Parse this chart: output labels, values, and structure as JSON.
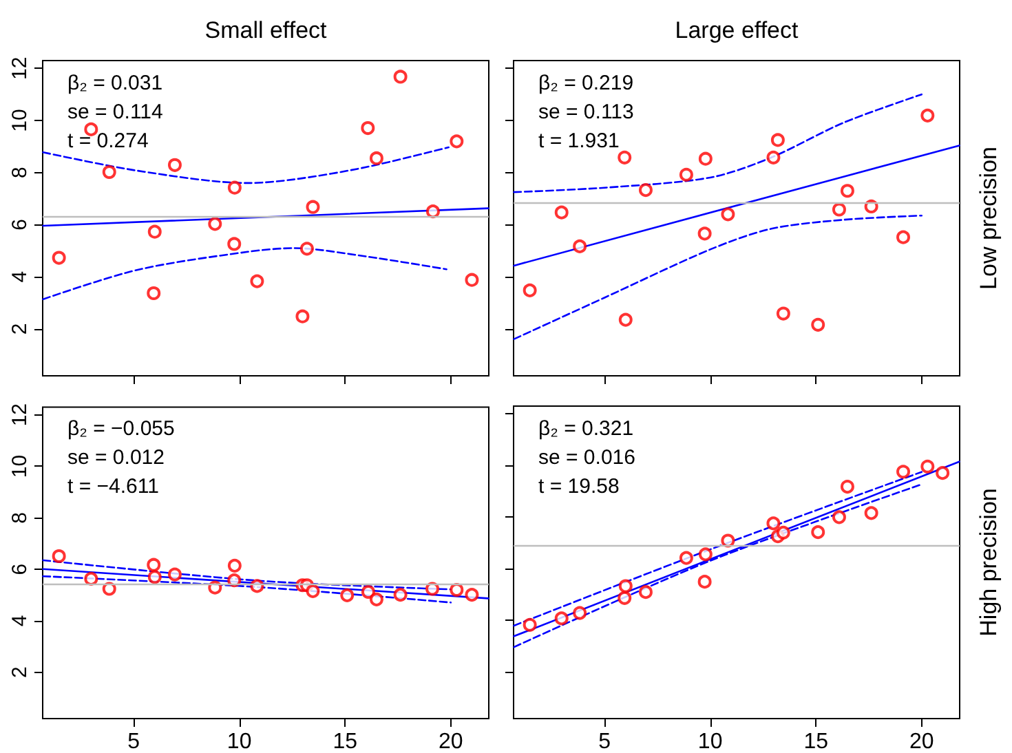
{
  "chart_data": [
    {
      "type": "scatter",
      "title": "Small effect",
      "annotations": [
        "β₂ = 0.031",
        "se = 0.114",
        "t = 0.274"
      ],
      "xlim": [
        0.7,
        21.8
      ],
      "ylim": [
        0.2,
        12.3
      ],
      "xticks": [
        5,
        10,
        15,
        20
      ],
      "yticks": [
        2,
        4,
        6,
        8,
        10,
        12
      ],
      "tick_labels": "y",
      "ref_lines": [
        {
          "axis": "y",
          "value": 6.31,
          "color": "#bebebe"
        }
      ],
      "series": [
        {
          "color": "#ff0000",
          "marker": "circle",
          "x": [
            1.47,
            2.99,
            3.85,
            5.95,
            6.0,
            6.95,
            8.85,
            9.76,
            9.78,
            10.84,
            12.99,
            13.2,
            13.48,
            16.08,
            16.49,
            17.62,
            19.16,
            20.28,
            21.0
          ],
          "values": [
            4.73,
            9.66,
            8.02,
            3.37,
            5.73,
            8.29,
            6.03,
            5.26,
            7.42,
            3.83,
            2.48,
            5.08,
            6.68,
            9.71,
            8.55,
            11.68,
            6.51,
            9.2,
            3.88
          ]
        },
        {
          "type": "line",
          "color": "#0000ff",
          "marker": "none",
          "x": [
            0.72,
            21.78
          ],
          "values": [
            5.96,
            6.63
          ]
        },
        {
          "type": "line",
          "color": "#0000ff",
          "marker": "none",
          "line_style": "dashed",
          "x": [
            0.72,
            5.2,
            10.4,
            12.6,
            16.0,
            19.9
          ],
          "values": [
            8.78,
            8.07,
            7.6,
            7.74,
            8.21,
            8.97
          ]
        },
        {
          "type": "line",
          "color": "#0000ff",
          "marker": "none",
          "line_style": "dashed",
          "x": [
            0.72,
            5.2,
            10.4,
            12.6,
            16.0,
            19.8
          ],
          "values": [
            3.14,
            4.27,
            4.96,
            5.1,
            4.78,
            4.29
          ]
        }
      ]
    },
    {
      "type": "scatter",
      "title": "Large effect",
      "y2label": "Low precision",
      "annotations": [
        "β₂ = 0.219",
        "se = 0.113",
        "t = 1.931"
      ],
      "xlim": [
        0.7,
        21.8
      ],
      "ylim": [
        0.2,
        12.3
      ],
      "xticks": [
        5,
        10,
        15,
        20
      ],
      "yticks": [
        2,
        4,
        6,
        8,
        10,
        12
      ],
      "tick_labels": false,
      "ref_lines": [
        {
          "axis": "y",
          "value": 6.82,
          "color": "#bebebe"
        }
      ],
      "series": [
        {
          "color": "#ff0000",
          "marker": "circle",
          "x": [
            1.47,
            2.97,
            3.83,
            5.95,
            6.0,
            6.95,
            8.87,
            9.78,
            9.74,
            10.84,
            12.99,
            13.2,
            13.46,
            15.1,
            16.1,
            16.49,
            17.62,
            19.13,
            20.28
          ],
          "values": [
            3.48,
            6.47,
            5.17,
            8.58,
            2.35,
            7.33,
            7.92,
            8.53,
            5.66,
            6.4,
            8.58,
            9.25,
            2.59,
            2.16,
            6.58,
            7.3,
            6.7,
            5.52,
            10.19
          ]
        },
        {
          "type": "line",
          "color": "#0000ff",
          "marker": "none",
          "x": [
            0.72,
            21.78
          ],
          "values": [
            4.43,
            9.04
          ]
        },
        {
          "type": "line",
          "color": "#0000ff",
          "marker": "none",
          "line_style": "dashed",
          "x": [
            0.72,
            5,
            10,
            12.86,
            16.32,
            20
          ],
          "values": [
            7.25,
            7.42,
            7.81,
            8.57,
            9.92,
            11.0
          ]
        },
        {
          "type": "line",
          "color": "#0000ff",
          "marker": "none",
          "line_style": "dashed",
          "x": [
            0.72,
            5,
            10,
            12.86,
            16.32,
            20
          ],
          "values": [
            1.61,
            3.2,
            5.05,
            5.84,
            6.19,
            6.35
          ]
        }
      ]
    },
    {
      "type": "scatter",
      "annotations": [
        "β₂ = −0.055",
        "se = 0.012",
        "t = −4.611"
      ],
      "xlim": [
        0.7,
        21.8
      ],
      "ylim": [
        0.2,
        12.3
      ],
      "xticks": [
        5,
        10,
        15,
        20
      ],
      "yticks": [
        2,
        4,
        6,
        8,
        10,
        12
      ],
      "ref_lines": [
        {
          "axis": "y",
          "value": 5.43,
          "color": "#bebebe"
        }
      ],
      "series": [
        {
          "color": "#ff0000",
          "marker": "circle",
          "x": [
            1.47,
            2.99,
            3.85,
            5.95,
            6.0,
            6.95,
            8.85,
            9.78,
            9.76,
            10.84,
            12.99,
            13.2,
            13.48,
            15.1,
            16.1,
            16.49,
            17.62,
            19.13,
            20.28,
            21.0
          ],
          "values": [
            6.51,
            5.63,
            5.24,
            6.17,
            5.7,
            5.8,
            5.29,
            6.14,
            5.57,
            5.35,
            5.38,
            5.38,
            5.15,
            4.99,
            5.12,
            4.83,
            5.01,
            5.24,
            5.2,
            5.01
          ]
        },
        {
          "type": "line",
          "color": "#0000ff",
          "marker": "none",
          "x": [
            0.72,
            21.78
          ],
          "values": [
            6.01,
            4.87
          ]
        },
        {
          "type": "line",
          "color": "#0000ff",
          "marker": "none",
          "line_style": "dashed",
          "x": [
            0.72,
            10.84,
            20.0
          ],
          "values": [
            6.35,
            5.56,
            5.22
          ]
        },
        {
          "type": "line",
          "color": "#0000ff",
          "marker": "none",
          "line_style": "dashed",
          "x": [
            0.72,
            10.84,
            20.0
          ],
          "values": [
            5.73,
            5.31,
            4.71
          ]
        }
      ]
    },
    {
      "type": "scatter",
      "y2label": "High precision",
      "annotations": [
        "β₂ = 0.321",
        "se = 0.016",
        "t = 19.58"
      ],
      "xlim": [
        0.7,
        21.8
      ],
      "ylim": [
        0.2,
        12.3
      ],
      "xticks": [
        5,
        10,
        15,
        20
      ],
      "yticks": [
        2,
        4,
        6,
        8,
        10,
        12
      ],
      "tick_labels": "x",
      "ref_lines": [
        {
          "axis": "y",
          "value": 6.89,
          "color": "#bebebe"
        }
      ],
      "series": [
        {
          "color": "#ff0000",
          "marker": "circle",
          "x": [
            1.47,
            2.97,
            3.83,
            5.95,
            6.0,
            6.95,
            8.87,
            9.78,
            9.74,
            10.84,
            12.99,
            13.2,
            13.46,
            15.1,
            16.1,
            16.49,
            17.62,
            19.13,
            20.28,
            20.99
          ],
          "values": [
            3.83,
            4.08,
            4.29,
            4.87,
            5.33,
            5.1,
            6.42,
            6.56,
            5.5,
            7.09,
            7.76,
            7.26,
            7.4,
            7.42,
            8.0,
            9.18,
            8.16,
            9.76,
            9.96,
            9.71
          ]
        },
        {
          "type": "line",
          "color": "#0000ff",
          "marker": "none",
          "x": [
            0.72,
            21.78
          ],
          "values": [
            3.39,
            10.15
          ]
        },
        {
          "type": "line",
          "color": "#0000ff",
          "marker": "none",
          "line_style": "dashed",
          "x": [
            0.72,
            10,
            20
          ],
          "values": [
            3.8,
            6.75,
            9.75
          ]
        },
        {
          "type": "line",
          "color": "#0000ff",
          "marker": "none",
          "line_style": "dashed",
          "x": [
            0.72,
            10,
            20
          ],
          "values": [
            2.97,
            6.31,
            9.27
          ]
        }
      ]
    }
  ]
}
